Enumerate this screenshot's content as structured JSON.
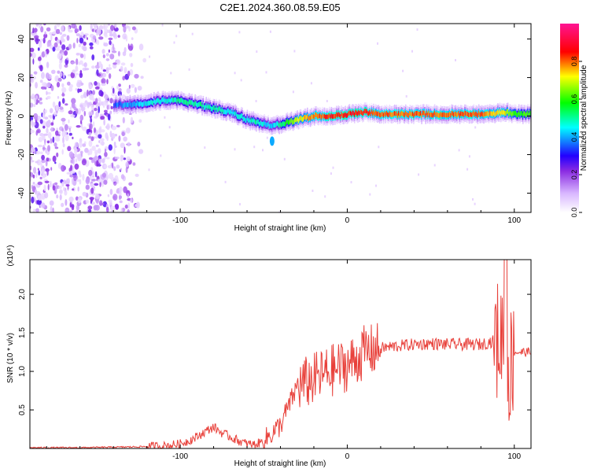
{
  "title": "C2E1.2024.360.08.59.E05",
  "colors": {
    "snr_line": "#e8403a",
    "colormap": [
      "#ffffff",
      "#d9b8ff",
      "#8a2be2",
      "#2200ff",
      "#00ffff",
      "#00ff00",
      "#ffff00",
      "#ff0000",
      "#ff1493"
    ]
  },
  "chart_data": [
    {
      "type": "heatmap",
      "xlabel": "Height of straight line (km)",
      "ylabel": "Frequency (Hz)",
      "xlim": [
        -190,
        110
      ],
      "ylim": [
        -50,
        48
      ],
      "xticks": [
        -100,
        0,
        100
      ],
      "yticks": [
        -40,
        -20,
        0,
        20,
        40
      ],
      "colorbar": {
        "label": "Normalized spectral amplitude",
        "range": [
          0,
          1
        ],
        "ticks": [
          "0.0",
          "0.2",
          "0.4",
          "0.6",
          "0.8"
        ]
      },
      "ridge": {
        "x": [
          -140,
          -130,
          -120,
          -110,
          -100,
          -90,
          -80,
          -70,
          -60,
          -55,
          -50,
          -45,
          -40,
          -35,
          -30,
          -25,
          -20,
          -10,
          0,
          10,
          20,
          40,
          60,
          80,
          95,
          100,
          110
        ],
        "y": [
          6,
          6,
          7,
          8,
          8,
          6,
          4,
          2,
          -2,
          -3,
          -4,
          -5,
          -4,
          -3,
          -2,
          -1,
          0,
          0,
          1,
          2,
          1,
          1,
          1,
          1,
          2,
          1,
          1
        ],
        "amplitude": [
          0.35,
          0.4,
          0.45,
          0.45,
          0.5,
          0.5,
          0.5,
          0.45,
          0.45,
          0.5,
          0.45,
          0.4,
          0.5,
          0.6,
          0.7,
          0.75,
          0.8,
          0.85,
          0.85,
          0.85,
          0.8,
          0.8,
          0.8,
          0.8,
          0.7,
          0.6,
          0.6
        ]
      },
      "noise_region_x": [
        -190,
        -120
      ]
    },
    {
      "type": "line",
      "xlabel": "Height of straight line (km)",
      "ylabel": "SNR (10 * v/v)",
      "y_multiplier": "(x10⁴)",
      "xlim": [
        -190,
        110
      ],
      "ylim": [
        0,
        2.45
      ],
      "xticks": [
        -100,
        0,
        100
      ],
      "yticks": [
        "0.5",
        "1.0",
        "1.5",
        "2.0"
      ],
      "series": [
        {
          "x": [
            -190,
            -160,
            -130,
            -110,
            -100,
            -95,
            -90,
            -85,
            -80,
            -75,
            -70,
            -65,
            -60,
            -55,
            -50,
            -45,
            -40,
            -35,
            -30,
            -25,
            -20,
            -15,
            -10,
            -5,
            0,
            5,
            10,
            20,
            30,
            40,
            50,
            60,
            70,
            80,
            85,
            90,
            93,
            95,
            97,
            100,
            105,
            110
          ],
          "y": [
            0.01,
            0.01,
            0.02,
            0.03,
            0.06,
            0.1,
            0.15,
            0.22,
            0.28,
            0.2,
            0.15,
            0.1,
            0.06,
            0.05,
            0.1,
            0.2,
            0.3,
            0.55,
            0.8,
            0.85,
            0.9,
            0.95,
            1.0,
            1.05,
            1.08,
            1.15,
            1.25,
            1.3,
            1.33,
            1.35,
            1.36,
            1.35,
            1.35,
            1.35,
            1.38,
            1.4,
            1.45,
            1.3,
            1.0,
            1.25,
            1.25,
            1.25
          ]
        }
      ]
    }
  ]
}
